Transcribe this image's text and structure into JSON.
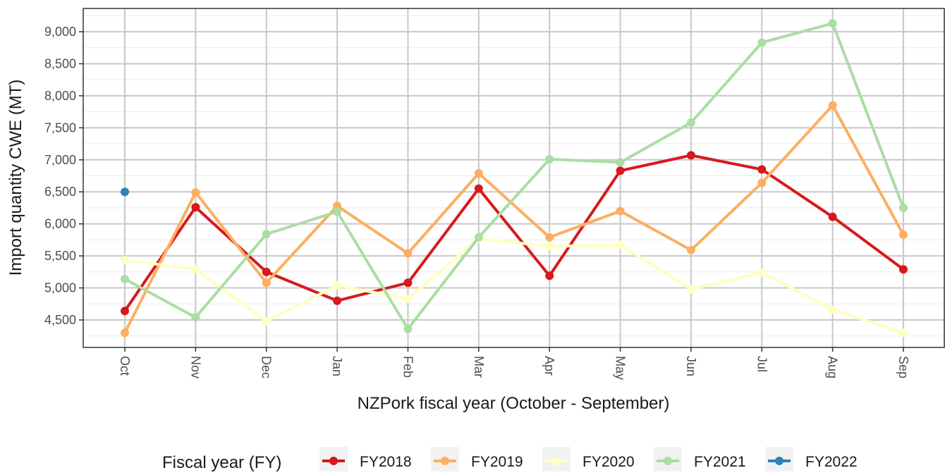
{
  "chart_data": {
    "type": "line",
    "x_label": "NZPork fiscal year (October - September)",
    "y_label": "Import quantity CWE (MT)",
    "legend_title": "Fiscal year (FY)",
    "legend_position": "bottom",
    "grid": true,
    "categories": [
      "Oct",
      "Nov",
      "Dec",
      "Jan",
      "Feb",
      "Mar",
      "Apr",
      "May",
      "Jun",
      "Jul",
      "Aug",
      "Sep"
    ],
    "ylim": [
      4071,
      9363
    ],
    "yticks": [
      {
        "value": 4500,
        "label": "4,500"
      },
      {
        "value": 5000,
        "label": "5,000"
      },
      {
        "value": 5500,
        "label": "5,500"
      },
      {
        "value": 6000,
        "label": "6,000"
      },
      {
        "value": 6500,
        "label": "6,500"
      },
      {
        "value": 7000,
        "label": "7,000"
      },
      {
        "value": 7500,
        "label": "7,500"
      },
      {
        "value": 8000,
        "label": "8,000"
      },
      {
        "value": 8500,
        "label": "8,500"
      },
      {
        "value": 9000,
        "label": "9,000"
      }
    ],
    "series": [
      {
        "name": "FY2018",
        "color": "#d7191c",
        "values": [
          4640,
          6260,
          5250,
          4800,
          5080,
          6550,
          5190,
          6830,
          7070,
          6850,
          6110,
          5290
        ]
      },
      {
        "name": "FY2019",
        "color": "#fdae61",
        "values": [
          4300,
          6490,
          5080,
          6280,
          5540,
          6790,
          5790,
          6200,
          5590,
          6640,
          7850,
          5830
        ]
      },
      {
        "name": "FY2020",
        "color": "#ffffbf",
        "values": [
          5435,
          5290,
          4480,
          5040,
          4830,
          5770,
          5650,
          5670,
          4980,
          5240,
          4660,
          4300
        ]
      },
      {
        "name": "FY2021",
        "color": "#abdda4",
        "values": [
          5140,
          4540,
          5840,
          6190,
          4360,
          5790,
          7010,
          6960,
          7580,
          8830,
          9130,
          6250
        ]
      },
      {
        "name": "FY2022",
        "color": "#2b83ba",
        "values": [
          6500,
          null,
          null,
          null,
          null,
          null,
          null,
          null,
          null,
          null,
          null,
          null
        ]
      }
    ]
  }
}
